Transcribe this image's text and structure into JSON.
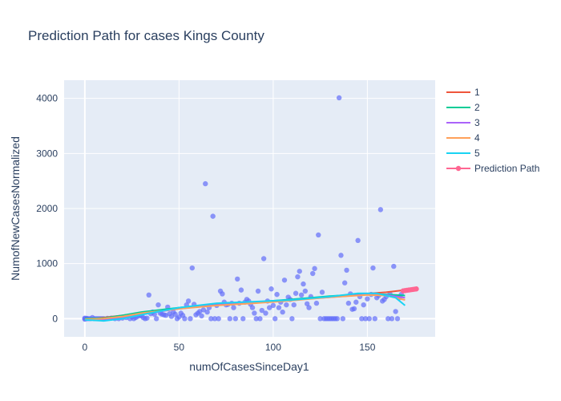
{
  "chart_data": {
    "type": "scatter",
    "title": "Prediction Path for cases Kings County",
    "xlabel": "numOfCasesSinceDay1",
    "ylabel": "NumofNewCasesNormalized",
    "xlim": [
      -11,
      186
    ],
    "ylim": [
      -330,
      4330
    ],
    "xticks": [
      0,
      50,
      100,
      150
    ],
    "yticks": [
      0,
      1000,
      2000,
      3000,
      4000
    ],
    "grid": true,
    "legend_position": "right",
    "scatter": {
      "color": "#636efa",
      "points": [
        [
          0,
          0
        ],
        [
          0,
          10
        ],
        [
          0,
          -10
        ],
        [
          1,
          0
        ],
        [
          1,
          5
        ],
        [
          2,
          0
        ],
        [
          3,
          0
        ],
        [
          4,
          20
        ],
        [
          5,
          0
        ],
        [
          6,
          0
        ],
        [
          7,
          0
        ],
        [
          8,
          0
        ],
        [
          9,
          0
        ],
        [
          10,
          0
        ],
        [
          12,
          5
        ],
        [
          14,
          10
        ],
        [
          16,
          0
        ],
        [
          18,
          0
        ],
        [
          20,
          10
        ],
        [
          22,
          20
        ],
        [
          24,
          0
        ],
        [
          25,
          30
        ],
        [
          26,
          0
        ],
        [
          27,
          20
        ],
        [
          28,
          40
        ],
        [
          29,
          60
        ],
        [
          30,
          50
        ],
        [
          31,
          20
        ],
        [
          32,
          0
        ],
        [
          33,
          10
        ],
        [
          34,
          430
        ],
        [
          35,
          90
        ],
        [
          36,
          120
        ],
        [
          37,
          80
        ],
        [
          38,
          0
        ],
        [
          39,
          250
        ],
        [
          40,
          100
        ],
        [
          41,
          80
        ],
        [
          42,
          70
        ],
        [
          43,
          60
        ],
        [
          44,
          210
        ],
        [
          45,
          90
        ],
        [
          46,
          40
        ],
        [
          47,
          120
        ],
        [
          48,
          80
        ],
        [
          49,
          0
        ],
        [
          50,
          30
        ],
        [
          51,
          100
        ],
        [
          52,
          60
        ],
        [
          53,
          0
        ],
        [
          54,
          250
        ],
        [
          55,
          320
        ],
        [
          56,
          0
        ],
        [
          57,
          920
        ],
        [
          58,
          260
        ],
        [
          59,
          70
        ],
        [
          60,
          100
        ],
        [
          61,
          130
        ],
        [
          62,
          50
        ],
        [
          63,
          160
        ],
        [
          64,
          2450
        ],
        [
          65,
          120
        ],
        [
          66,
          200
        ],
        [
          67,
          0
        ],
        [
          68,
          1860
        ],
        [
          69,
          0
        ],
        [
          70,
          240
        ],
        [
          71,
          0
        ],
        [
          72,
          500
        ],
        [
          73,
          450
        ],
        [
          74,
          300
        ],
        [
          75,
          250
        ],
        [
          76,
          260
        ],
        [
          77,
          0
        ],
        [
          78,
          280
        ],
        [
          79,
          200
        ],
        [
          80,
          0
        ],
        [
          81,
          720
        ],
        [
          82,
          280
        ],
        [
          83,
          520
        ],
        [
          84,
          0
        ],
        [
          85,
          300
        ],
        [
          86,
          350
        ],
        [
          87,
          320
        ],
        [
          88,
          260
        ],
        [
          89,
          200
        ],
        [
          90,
          100
        ],
        [
          91,
          0
        ],
        [
          92,
          500
        ],
        [
          93,
          0
        ],
        [
          94,
          150
        ],
        [
          95,
          1090
        ],
        [
          96,
          100
        ],
        [
          97,
          320
        ],
        [
          98,
          200
        ],
        [
          99,
          540
        ],
        [
          100,
          240
        ],
        [
          101,
          0
        ],
        [
          102,
          440
        ],
        [
          103,
          200
        ],
        [
          104,
          300
        ],
        [
          105,
          120
        ],
        [
          106,
          700
        ],
        [
          107,
          250
        ],
        [
          108,
          390
        ],
        [
          109,
          350
        ],
        [
          110,
          0
        ],
        [
          111,
          250
        ],
        [
          112,
          460
        ],
        [
          113,
          760
        ],
        [
          114,
          860
        ],
        [
          115,
          430
        ],
        [
          116,
          630
        ],
        [
          117,
          500
        ],
        [
          118,
          270
        ],
        [
          119,
          200
        ],
        [
          120,
          400
        ],
        [
          121,
          820
        ],
        [
          122,
          910
        ],
        [
          123,
          280
        ],
        [
          124,
          1520
        ],
        [
          125,
          0
        ],
        [
          126,
          480
        ],
        [
          127,
          0
        ],
        [
          128,
          0
        ],
        [
          129,
          0
        ],
        [
          130,
          0
        ],
        [
          131,
          0
        ],
        [
          132,
          0
        ],
        [
          133,
          0
        ],
        [
          134,
          0
        ],
        [
          135,
          4010
        ],
        [
          136,
          1150
        ],
        [
          137,
          0
        ],
        [
          138,
          650
        ],
        [
          139,
          880
        ],
        [
          140,
          280
        ],
        [
          141,
          450
        ],
        [
          142,
          170
        ],
        [
          143,
          180
        ],
        [
          144,
          300
        ],
        [
          145,
          1420
        ],
        [
          146,
          400
        ],
        [
          147,
          0
        ],
        [
          148,
          250
        ],
        [
          149,
          0
        ],
        [
          150,
          360
        ],
        [
          151,
          0
        ],
        [
          152,
          440
        ],
        [
          153,
          920
        ],
        [
          154,
          0
        ],
        [
          155,
          380
        ],
        [
          156,
          420
        ],
        [
          157,
          1980
        ],
        [
          158,
          320
        ],
        [
          159,
          350
        ],
        [
          160,
          400
        ],
        [
          161,
          0
        ],
        [
          162,
          450
        ],
        [
          163,
          0
        ],
        [
          164,
          950
        ],
        [
          165,
          130
        ],
        [
          166,
          0
        ],
        [
          167,
          380
        ],
        [
          168,
          440
        ]
      ]
    },
    "series": [
      {
        "name": "1",
        "color": "#ef553b",
        "points": [
          [
            0,
            -20
          ],
          [
            20,
            60
          ],
          [
            40,
            150
          ],
          [
            60,
            220
          ],
          [
            80,
            270
          ],
          [
            100,
            320
          ],
          [
            120,
            370
          ],
          [
            140,
            430
          ],
          [
            160,
            480
          ],
          [
            170,
            520
          ]
        ]
      },
      {
        "name": "2",
        "color": "#00cc96",
        "points": [
          [
            0,
            0
          ],
          [
            10,
            10
          ],
          [
            20,
            60
          ],
          [
            30,
            120
          ],
          [
            50,
            200
          ],
          [
            70,
            270
          ],
          [
            90,
            300
          ],
          [
            110,
            350
          ],
          [
            130,
            410
          ],
          [
            150,
            450
          ],
          [
            160,
            440
          ],
          [
            170,
            420
          ]
        ]
      },
      {
        "name": "3",
        "color": "#ab63fa",
        "points": [
          [
            0,
            -20
          ],
          [
            10,
            -20
          ],
          [
            20,
            20
          ],
          [
            30,
            80
          ],
          [
            50,
            180
          ],
          [
            70,
            250
          ],
          [
            90,
            300
          ],
          [
            110,
            340
          ],
          [
            130,
            390
          ],
          [
            150,
            440
          ],
          [
            160,
            430
          ],
          [
            170,
            380
          ]
        ]
      },
      {
        "name": "4",
        "color": "#ffa15a",
        "points": [
          [
            0,
            -10
          ],
          [
            10,
            0
          ],
          [
            20,
            40
          ],
          [
            30,
            100
          ],
          [
            50,
            180
          ],
          [
            70,
            240
          ],
          [
            90,
            280
          ],
          [
            110,
            330
          ],
          [
            130,
            390
          ],
          [
            150,
            430
          ],
          [
            160,
            420
          ],
          [
            170,
            340
          ]
        ]
      },
      {
        "name": "5",
        "color": "#19d3f3",
        "points": [
          [
            0,
            -20
          ],
          [
            10,
            -40
          ],
          [
            20,
            0
          ],
          [
            30,
            70
          ],
          [
            50,
            200
          ],
          [
            70,
            280
          ],
          [
            90,
            310
          ],
          [
            110,
            340
          ],
          [
            130,
            400
          ],
          [
            145,
            460
          ],
          [
            155,
            460
          ],
          [
            165,
            380
          ],
          [
            170,
            240
          ]
        ]
      },
      {
        "name": "Prediction Path",
        "color": "#ff6692",
        "markers": true,
        "points": [
          [
            169,
            505
          ],
          [
            170,
            510
          ],
          [
            171,
            515
          ],
          [
            172,
            520
          ],
          [
            173,
            525
          ],
          [
            174,
            530
          ],
          [
            175,
            535
          ],
          [
            176,
            540
          ]
        ]
      }
    ]
  }
}
